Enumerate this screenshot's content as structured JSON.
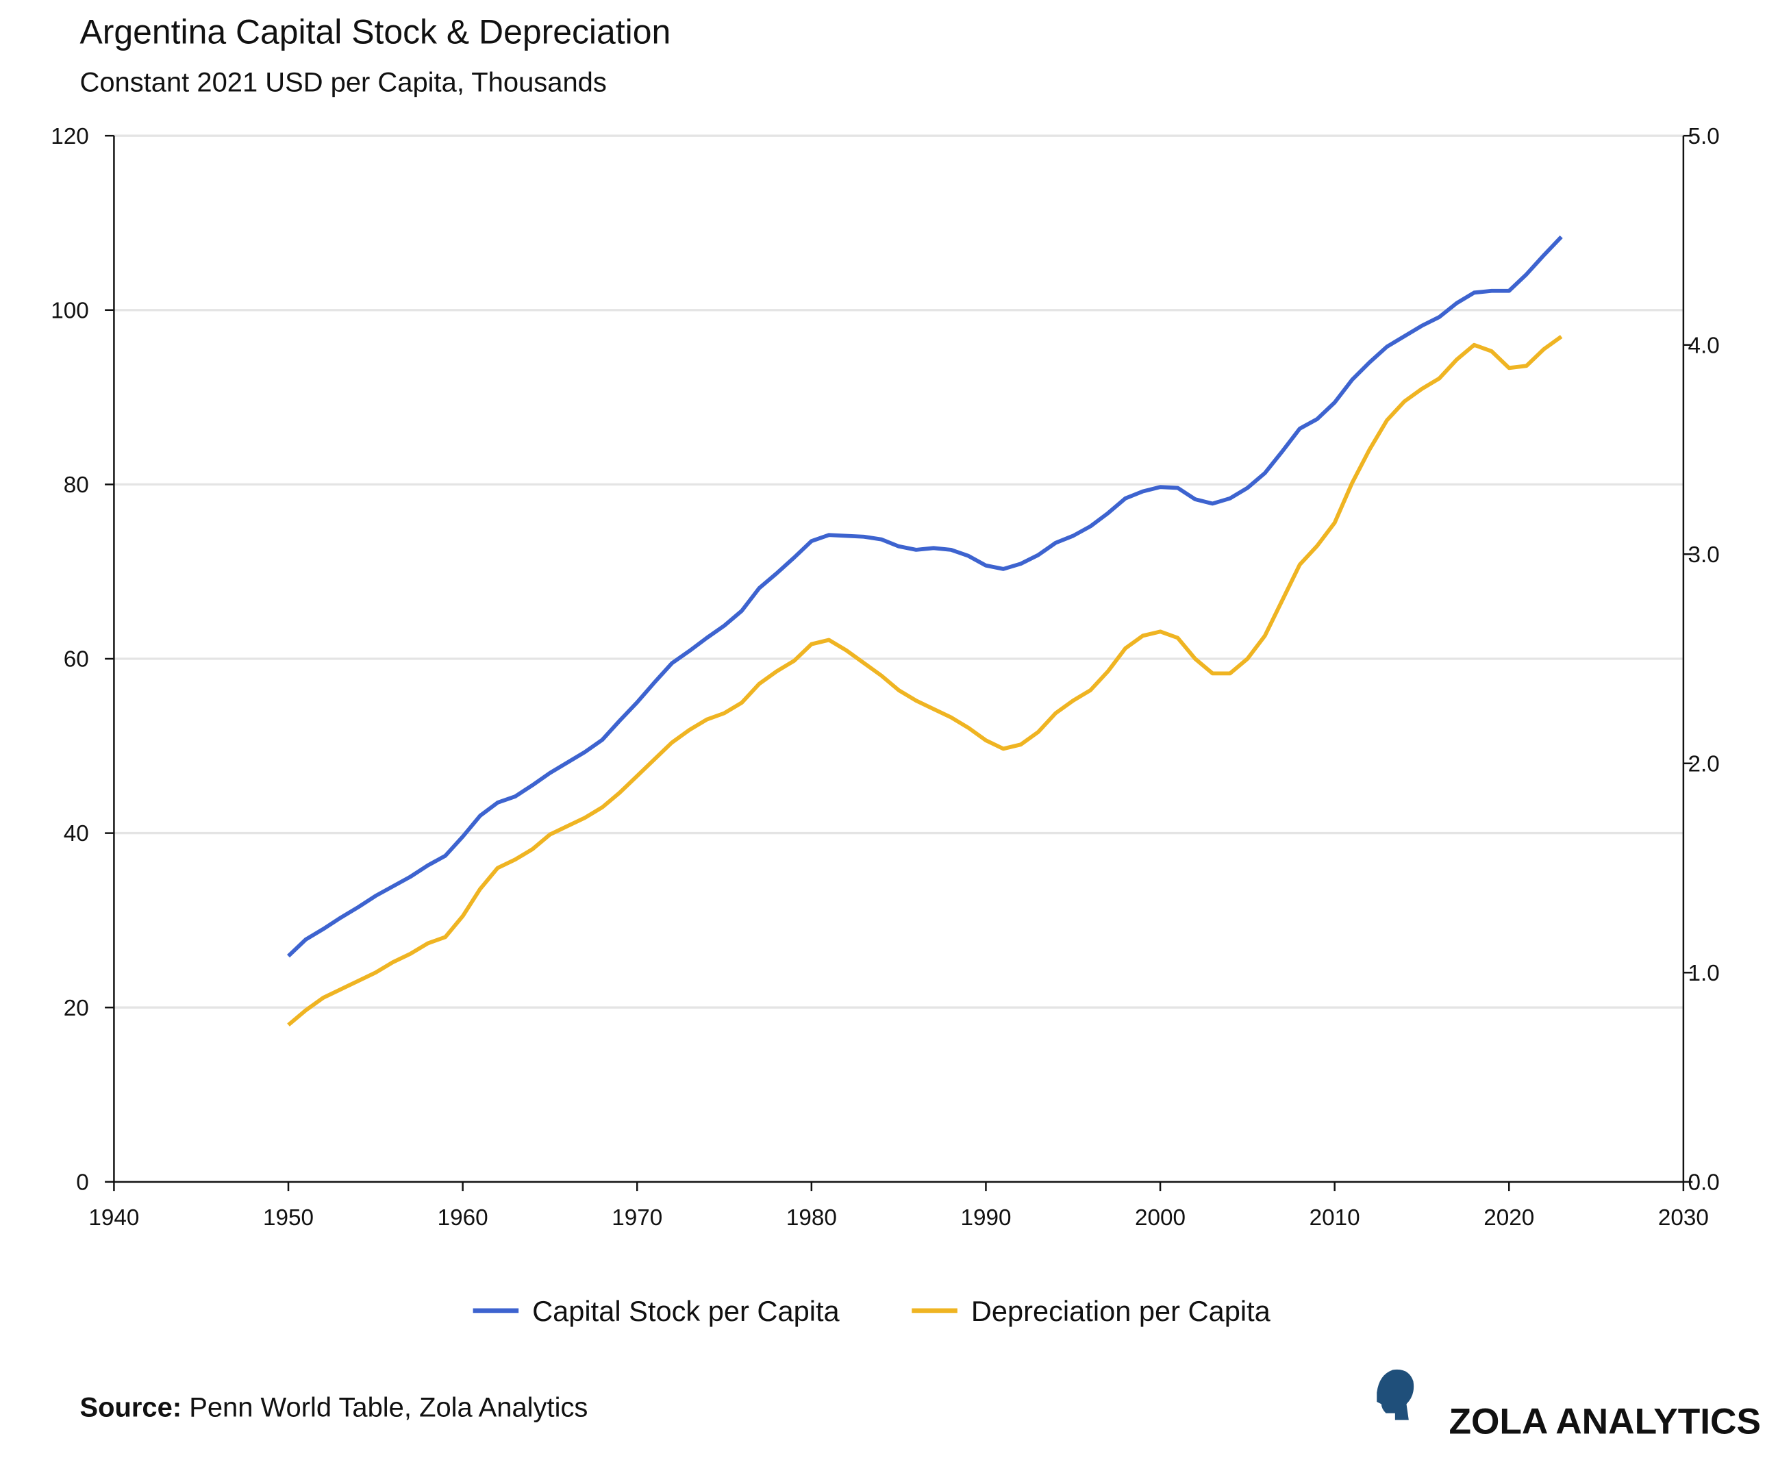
{
  "chart_data": {
    "type": "line",
    "title": "Argentina Capital Stock & Depreciation",
    "subtitle": "Constant 2021 USD per Capita, Thousands",
    "source_label": "Source:",
    "source": "Penn World Table, Zola Analytics",
    "brand": "ZOLA ANALYTICS",
    "xlim": [
      1940,
      2030
    ],
    "xticks": [
      1940,
      1950,
      1960,
      1970,
      1980,
      1990,
      2000,
      2010,
      2020,
      2030
    ],
    "ylim": [
      0,
      120
    ],
    "yticks": [
      0,
      20,
      40,
      60,
      80,
      100,
      120
    ],
    "y2lim": [
      0,
      5
    ],
    "y2ticks": [
      {
        "value": 0,
        "label": "0.0"
      },
      {
        "value": 1,
        "label": "1.0"
      },
      {
        "value": 2,
        "label": "2.0"
      },
      {
        "value": 3,
        "label": "3.0"
      },
      {
        "value": 4,
        "label": "4.0"
      },
      {
        "value": 5,
        "label": "5.0"
      }
    ],
    "grid": true,
    "legend": "bottom",
    "x": [
      1950,
      1951,
      1952,
      1953,
      1954,
      1955,
      1956,
      1957,
      1958,
      1959,
      1960,
      1961,
      1962,
      1963,
      1964,
      1965,
      1966,
      1967,
      1968,
      1969,
      1970,
      1971,
      1972,
      1973,
      1974,
      1975,
      1976,
      1977,
      1978,
      1979,
      1980,
      1981,
      1982,
      1983,
      1984,
      1985,
      1986,
      1987,
      1988,
      1989,
      1990,
      1991,
      1992,
      1993,
      1994,
      1995,
      1996,
      1997,
      1998,
      1999,
      2000,
      2001,
      2002,
      2003,
      2004,
      2005,
      2006,
      2007,
      2008,
      2009,
      2010,
      2011,
      2012,
      2013,
      2014,
      2015,
      2016,
      2017,
      2018,
      2019,
      2020,
      2021,
      2022,
      2023
    ],
    "series": [
      {
        "name": "Capital Stock per Capita",
        "color": "#3d63cf",
        "values": [
          25.9,
          27.8,
          29.0,
          30.3,
          31.5,
          32.8,
          33.9,
          35.0,
          36.3,
          37.4,
          39.6,
          42.0,
          43.5,
          44.2,
          45.5,
          46.9,
          48.1,
          49.3,
          50.7,
          52.9,
          55.0,
          57.3,
          59.5,
          60.9,
          62.4,
          63.8,
          65.5,
          68.1,
          69.8,
          71.6,
          73.5,
          74.2,
          74.1,
          74.0,
          73.7,
          72.9,
          72.5,
          72.7,
          72.5,
          71.8,
          70.7,
          70.3,
          70.9,
          71.9,
          73.3,
          74.1,
          75.2,
          76.7,
          78.4,
          79.2,
          79.7,
          79.6,
          78.3,
          77.8,
          78.4,
          79.6,
          81.3,
          83.8,
          86.4,
          87.5,
          89.4,
          92.0,
          94.0,
          95.8,
          97.0,
          98.2,
          99.2,
          100.8,
          102.0,
          102.2,
          102.2,
          104.1,
          106.3,
          108.4
        ]
      },
      {
        "name": "Depreciation per Capita",
        "color": "#efb422",
        "axis": "y2",
        "values": [
          0.75,
          0.82,
          0.88,
          0.92,
          0.96,
          1.0,
          1.05,
          1.09,
          1.14,
          1.17,
          1.27,
          1.4,
          1.5,
          1.54,
          1.59,
          1.66,
          1.7,
          1.74,
          1.79,
          1.86,
          1.94,
          2.02,
          2.1,
          2.16,
          2.21,
          2.24,
          2.29,
          2.38,
          2.44,
          2.49,
          2.57,
          2.59,
          2.54,
          2.48,
          2.42,
          2.35,
          2.3,
          2.26,
          2.22,
          2.17,
          2.11,
          2.07,
          2.09,
          2.15,
          2.24,
          2.3,
          2.35,
          2.44,
          2.55,
          2.61,
          2.63,
          2.6,
          2.5,
          2.43,
          2.43,
          2.5,
          2.61,
          2.78,
          2.95,
          3.04,
          3.15,
          3.34,
          3.5,
          3.64,
          3.73,
          3.79,
          3.84,
          3.93,
          4.0,
          3.97,
          3.89,
          3.9,
          3.98,
          4.04
        ]
      }
    ]
  }
}
